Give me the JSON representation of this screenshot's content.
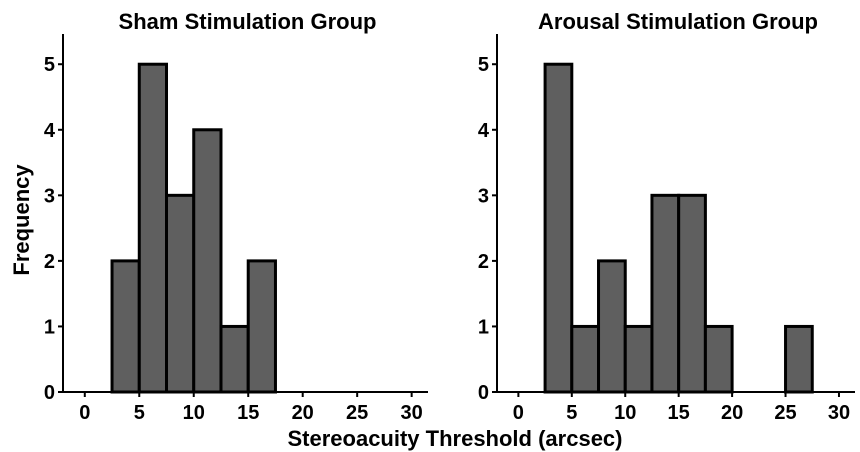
{
  "figure": {
    "ylabel": "Frequency",
    "xlabel": "Stereoacuity Threshold (arcsec)"
  },
  "colors": {
    "bar_fill": "#5f5f5f",
    "bar_edge": "#000000",
    "axis": "#000000",
    "background": "#ffffff"
  },
  "chart_data": [
    {
      "type": "bar",
      "title": "Sham Stimulation Group",
      "xlabel": "Stereoacuity Threshold (arcsec)",
      "ylabel": "Frequency",
      "bin_width": 2.5,
      "bins": [
        {
          "x0": 2.5,
          "x1": 5.0,
          "count": 2
        },
        {
          "x0": 5.0,
          "x1": 7.5,
          "count": 5
        },
        {
          "x0": 7.5,
          "x1": 10.0,
          "count": 3
        },
        {
          "x0": 10.0,
          "x1": 12.5,
          "count": 4
        },
        {
          "x0": 12.5,
          "x1": 15.0,
          "count": 1
        },
        {
          "x0": 15.0,
          "x1": 17.5,
          "count": 2
        }
      ],
      "xticks": [
        "0",
        "5",
        "10",
        "15",
        "20",
        "25",
        "30"
      ],
      "yticks": [
        "0",
        "1",
        "2",
        "3",
        "4",
        "5"
      ],
      "xlim": [
        -2,
        31.5
      ],
      "ylim": [
        0,
        5.4
      ],
      "grid": false
    },
    {
      "type": "bar",
      "title": "Arousal Stimulation Group",
      "xlabel": "Stereoacuity Threshold (arcsec)",
      "ylabel": "Frequency",
      "bin_width": 2.5,
      "bins": [
        {
          "x0": 2.5,
          "x1": 5.0,
          "count": 5
        },
        {
          "x0": 5.0,
          "x1": 7.5,
          "count": 1
        },
        {
          "x0": 7.5,
          "x1": 10.0,
          "count": 2
        },
        {
          "x0": 10.0,
          "x1": 12.5,
          "count": 1
        },
        {
          "x0": 12.5,
          "x1": 15.0,
          "count": 3
        },
        {
          "x0": 15.0,
          "x1": 17.5,
          "count": 3
        },
        {
          "x0": 17.5,
          "x1": 20.0,
          "count": 1
        },
        {
          "x0": 25.0,
          "x1": 27.5,
          "count": 1
        }
      ],
      "xticks": [
        "0",
        "5",
        "10",
        "15",
        "20",
        "25",
        "30"
      ],
      "yticks": [
        "0",
        "1",
        "2",
        "3",
        "4",
        "5"
      ],
      "xlim": [
        -2,
        31.5
      ],
      "ylim": [
        0,
        5.4
      ],
      "grid": false
    }
  ]
}
